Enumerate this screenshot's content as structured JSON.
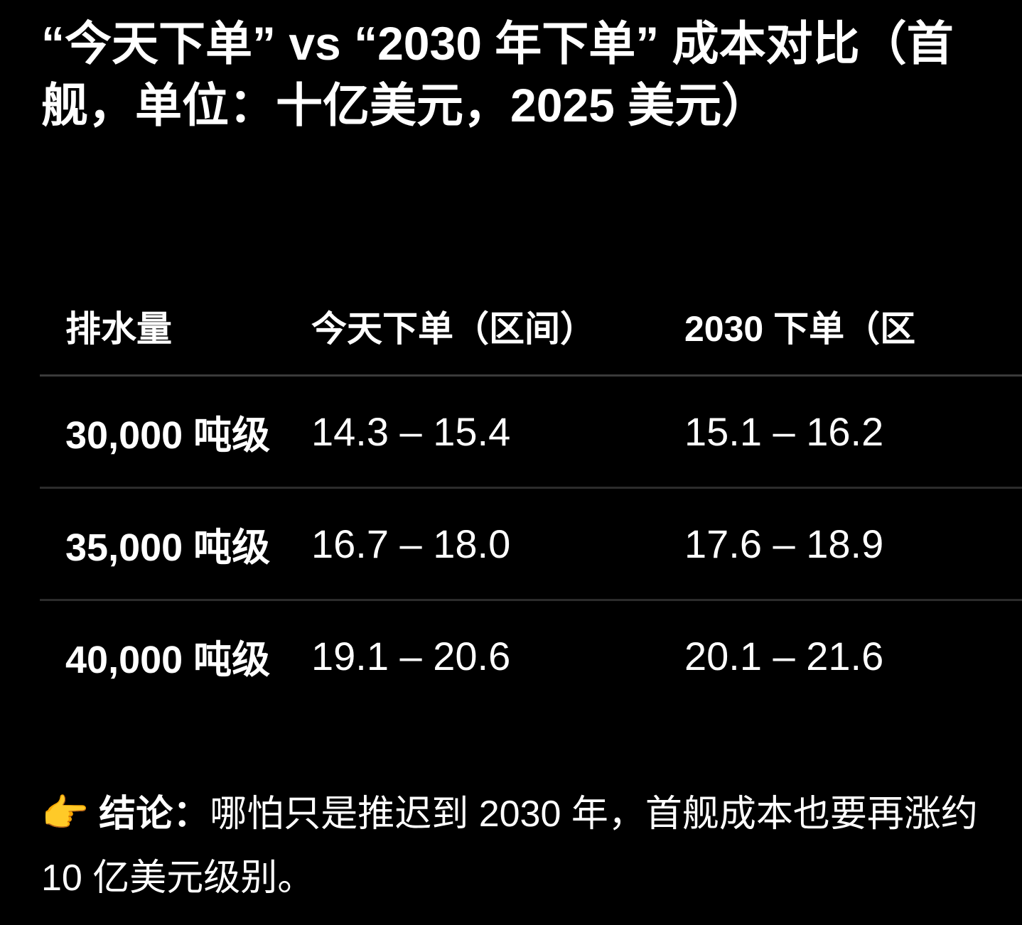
{
  "title": "“今天下单” vs “2030 年下单” 成本对比（首舰，单位：十亿美元，2025 美元）",
  "table": {
    "headers": [
      "排水量",
      "今天下单（区间）",
      "2030 下单（区"
    ],
    "rows": [
      [
        "30,000 吨级",
        "14.3 – 15.4",
        "15.1 – 16.2"
      ],
      [
        "35,000 吨级",
        "16.7 – 18.0",
        "17.6 – 18.9"
      ],
      [
        "40,000 吨级",
        "19.1 – 20.6",
        "20.1 – 21.6"
      ]
    ]
  },
  "conclusion": {
    "icon": "pointing-hand-icon",
    "icon_glyph": "👉",
    "icon_color": "#f2b33d",
    "label": "结论：",
    "text": "哪怕只是推迟到 2030 年，首舰成本也要再涨约 10 亿美元级别。"
  },
  "colors": {
    "background": "#000000",
    "text": "#ffffff",
    "divider": "#3a3a3a"
  }
}
